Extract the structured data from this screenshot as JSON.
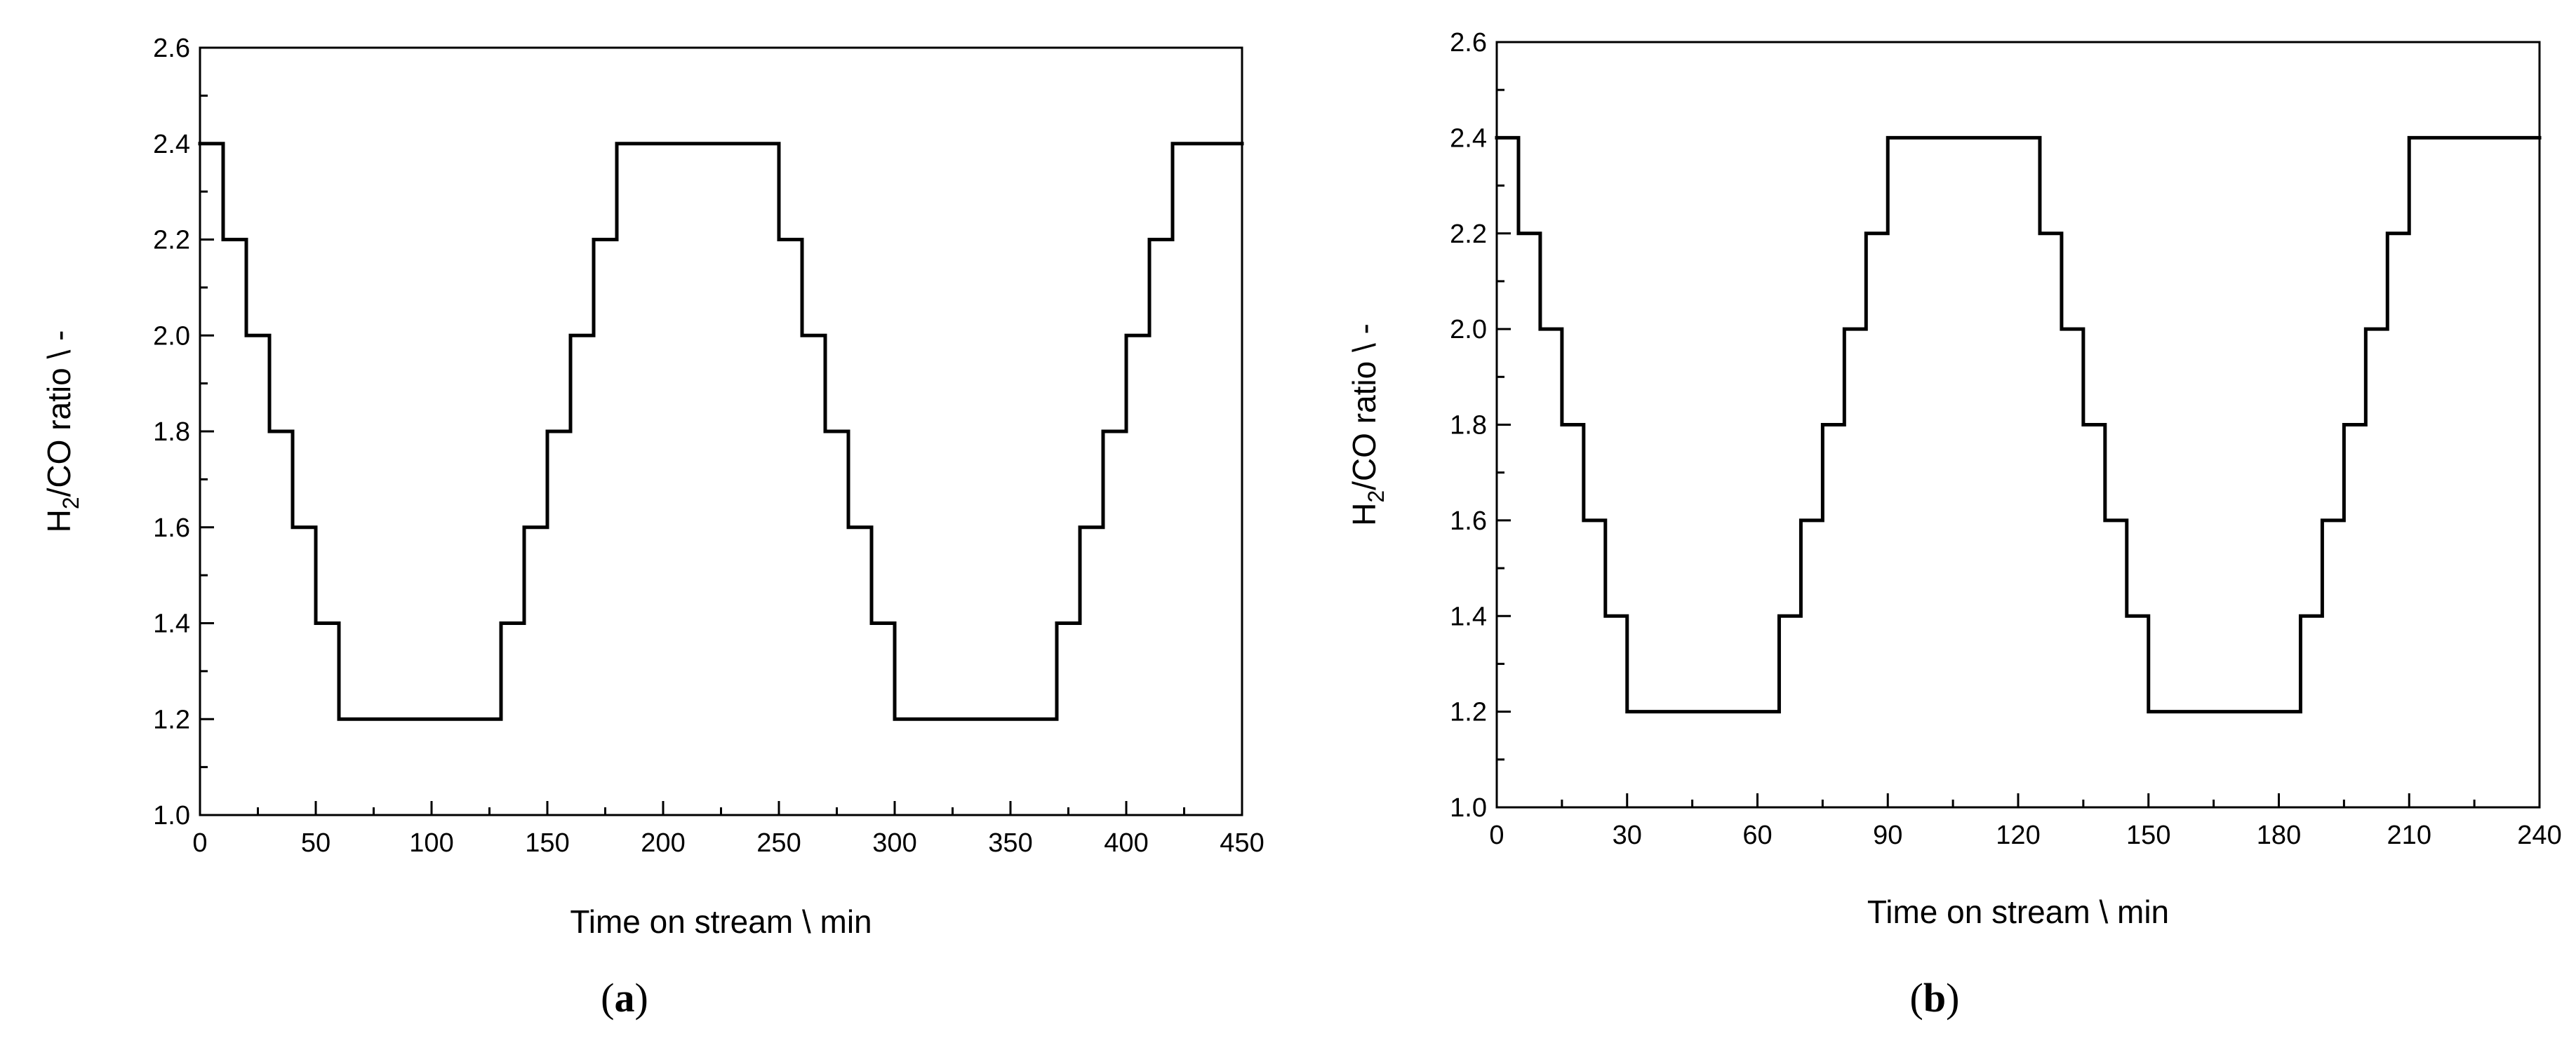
{
  "chart_data": [
    {
      "type": "line",
      "step": true,
      "panel_label": "(a)",
      "panel_letter": "a",
      "xlabel": "Time on stream \\ min",
      "ylabel_main": "H",
      "ylabel_sub": "2",
      "ylabel_rest": "/CO ratio \\ -",
      "xlim": [
        0,
        450
      ],
      "ylim": [
        1.0,
        2.6
      ],
      "x_ticks": [
        0,
        50,
        100,
        150,
        200,
        250,
        300,
        350,
        400,
        450
      ],
      "x_tick_labels": [
        "0",
        "50",
        "100",
        "150",
        "200",
        "250",
        "300",
        "350",
        "400",
        "450"
      ],
      "y_ticks": [
        1.0,
        1.2,
        1.4,
        1.6,
        1.8,
        2.0,
        2.2,
        2.4,
        2.6
      ],
      "y_tick_labels": [
        "1.0",
        "1.2",
        "1.4",
        "1.6",
        "1.8",
        "2.0",
        "2.2",
        "2.4",
        "2.6"
      ],
      "grid": false,
      "series": [
        {
          "x": [
            0,
            10,
            20,
            30,
            40,
            50,
            60,
            130,
            140,
            150,
            160,
            170,
            180,
            250,
            260,
            270,
            280,
            290,
            300,
            370,
            380,
            390,
            400,
            410,
            420
          ],
          "y": [
            2.4,
            2.2,
            2.0,
            1.8,
            1.6,
            1.4,
            1.2,
            1.4,
            1.6,
            1.8,
            2.0,
            2.2,
            2.4,
            2.2,
            2.0,
            1.8,
            1.6,
            1.4,
            1.2,
            1.4,
            1.6,
            1.8,
            2.0,
            2.2,
            2.4
          ],
          "x_end": 450
        }
      ]
    },
    {
      "type": "line",
      "step": true,
      "panel_label": "(b)",
      "panel_letter": "b",
      "xlabel": "Time on stream \\ min",
      "ylabel_main": "H",
      "ylabel_sub": "2",
      "ylabel_rest": "/CO ratio \\ -",
      "xlim": [
        0,
        240
      ],
      "ylim": [
        1.0,
        2.6
      ],
      "x_ticks": [
        0,
        30,
        60,
        90,
        120,
        150,
        180,
        210,
        240
      ],
      "x_tick_labels": [
        "0",
        "30",
        "60",
        "90",
        "120",
        "150",
        "180",
        "210",
        "240"
      ],
      "y_ticks": [
        1.0,
        1.2,
        1.4,
        1.6,
        1.8,
        2.0,
        2.2,
        2.4,
        2.6
      ],
      "y_tick_labels": [
        "1.0",
        "1.2",
        "1.4",
        "1.6",
        "1.8",
        "2.0",
        "2.2",
        "2.4",
        "2.6"
      ],
      "grid": false,
      "series": [
        {
          "x": [
            0,
            5,
            10,
            15,
            20,
            25,
            30,
            65,
            70,
            75,
            80,
            85,
            90,
            125,
            130,
            135,
            140,
            145,
            150,
            185,
            190,
            195,
            200,
            205,
            210
          ],
          "y": [
            2.4,
            2.2,
            2.0,
            1.8,
            1.6,
            1.4,
            1.2,
            1.4,
            1.6,
            1.8,
            2.0,
            2.2,
            2.4,
            2.2,
            2.0,
            1.8,
            1.6,
            1.4,
            1.2,
            1.4,
            1.6,
            1.8,
            2.0,
            2.2,
            2.4
          ],
          "x_end": 240
        }
      ]
    }
  ]
}
